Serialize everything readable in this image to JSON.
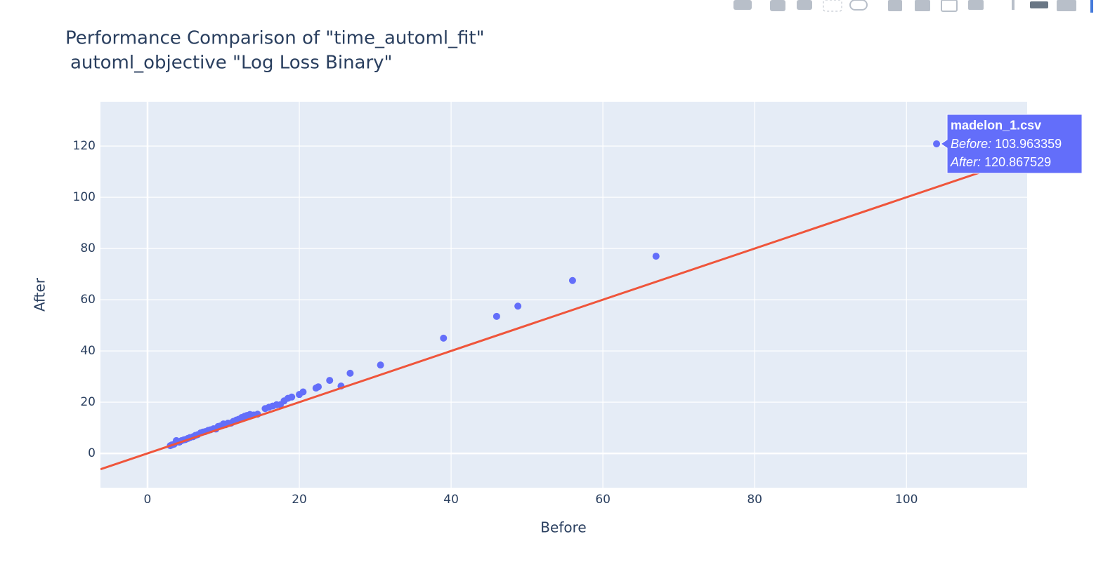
{
  "chart_data": {
    "type": "scatter",
    "title": "Performance Comparison of \"time_automl_fit\"",
    "subtitle": "automl_objective \"Log Loss Binary\"",
    "x_label": "Before",
    "y_label": "After",
    "xlim": [
      -6.2,
      115.9
    ],
    "ylim": [
      -13.4,
      137.3
    ],
    "xticks": [
      0,
      20,
      40,
      60,
      80,
      100
    ],
    "yticks": [
      0,
      20,
      40,
      60,
      80,
      100,
      120
    ],
    "grid": true,
    "background": "#e5ecf6",
    "series": [
      {
        "mode": "markers",
        "color": "#636efa",
        "x": [
          3,
          3.2,
          3.5,
          3.8,
          4,
          4.2,
          4.5,
          4.8,
          5,
          5.3,
          5.6,
          6,
          6.3,
          6.6,
          7,
          7.3,
          7.6,
          8,
          8.3,
          8.7,
          9,
          9.3,
          9.6,
          10,
          10.3,
          10.6,
          11,
          11.3,
          11.7,
          12,
          12.4,
          12.8,
          13.1,
          13.5,
          14,
          14.5,
          15.5,
          16,
          16.5,
          17,
          17.5,
          18,
          18.5,
          19,
          20,
          20.5,
          22.2,
          22.5,
          24,
          25.5,
          26.7,
          30.7,
          39,
          46,
          48.8,
          56,
          67,
          103.963359
        ],
        "y": [
          3,
          3.3,
          3.6,
          5,
          4.5,
          4.4,
          5,
          5.3,
          5.4,
          5.8,
          6.2,
          6.5,
          7,
          7.3,
          8,
          8.3,
          8.5,
          9,
          9.2,
          9.6,
          9.5,
          10.5,
          10.7,
          11.5,
          11.2,
          11.8,
          11.8,
          12.5,
          13,
          13.3,
          14,
          14.5,
          14.8,
          15.2,
          15,
          15.3,
          17.5,
          18,
          18.5,
          19,
          19,
          20.5,
          21.5,
          22,
          23,
          24,
          25.5,
          26,
          28.5,
          26.3,
          31.3,
          34.5,
          45,
          53.5,
          57.5,
          67.5,
          77,
          120.867529
        ]
      },
      {
        "mode": "lines",
        "color": "#ef553b",
        "x": [
          -6.2,
          115.9
        ],
        "y": [
          -6.2,
          115.9
        ]
      }
    ],
    "hover": {
      "name": "madelon_1.csv",
      "x_label": "Before:",
      "y_label": "After:",
      "x": 103.963359,
      "y": 120.867529
    }
  }
}
